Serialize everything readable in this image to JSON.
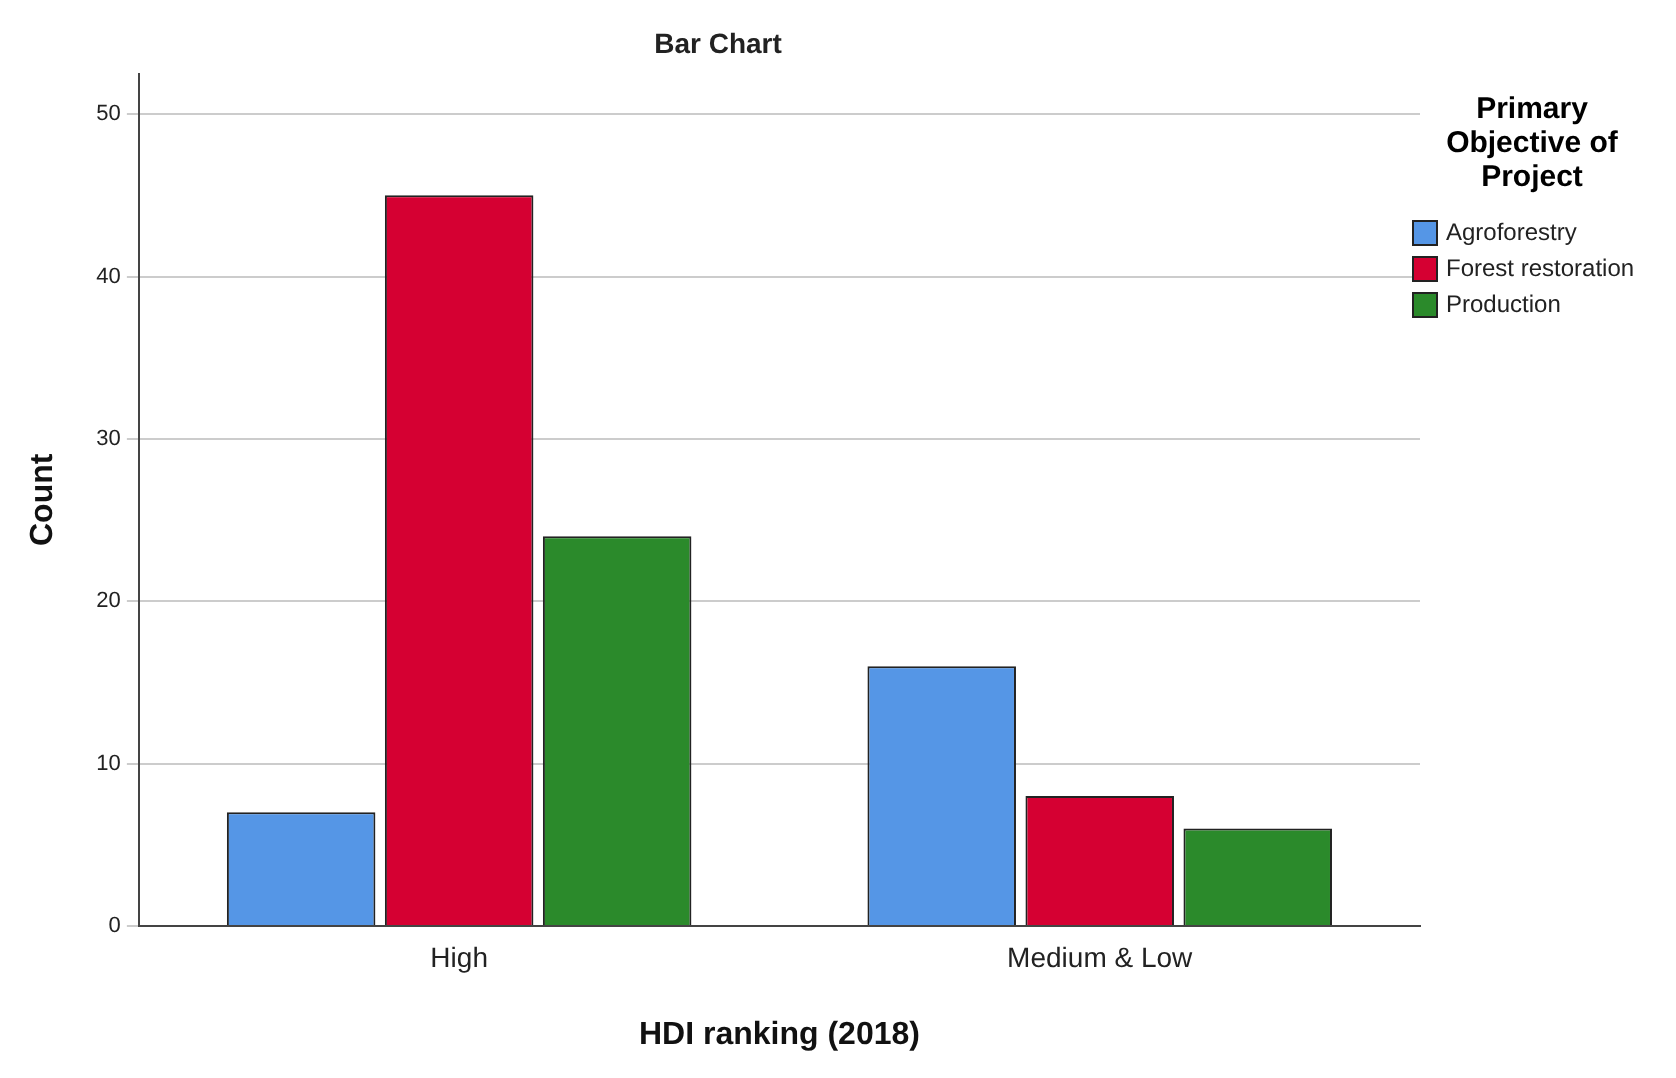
{
  "chart_data": {
    "type": "bar",
    "title": "Bar Chart",
    "xlabel": "HDI ranking (2018)",
    "ylabel": "Count",
    "legend_title": "Primary Objective of Project",
    "categories": [
      "High",
      "Medium & Low"
    ],
    "series": [
      {
        "name": "Agroforestry",
        "color": "#5596e6",
        "values": [
          7,
          16
        ]
      },
      {
        "name": "Forest restoration",
        "color": "#d50032",
        "values": [
          45,
          8
        ]
      },
      {
        "name": "Production",
        "color": "#2b8a2b",
        "values": [
          24,
          6
        ]
      }
    ],
    "ylim": [
      0,
      52.5
    ],
    "yticks": [
      0,
      10,
      20,
      30,
      40,
      50
    ],
    "grid": "y",
    "legend": "top right"
  }
}
